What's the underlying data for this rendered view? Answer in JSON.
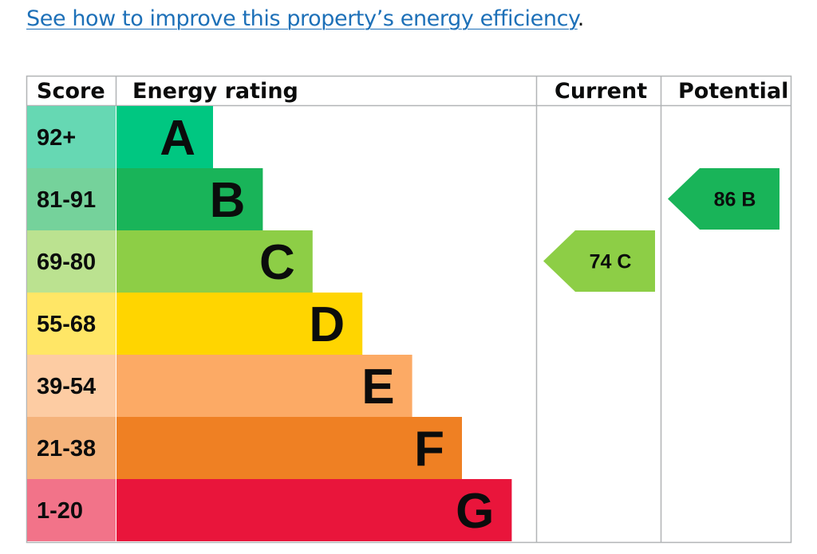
{
  "link": {
    "text": "See how to improve this property’s energy efficiency",
    "trailing": "."
  },
  "headers": {
    "score": "Score",
    "rating": "Energy rating",
    "current": "Current",
    "potential": "Potential"
  },
  "chart_data": {
    "type": "bar",
    "bands": [
      {
        "letter": "A",
        "score": "92+",
        "color": "#00c781",
        "score_bg": "#66d8b3"
      },
      {
        "letter": "B",
        "score": "81-91",
        "color": "#19b459",
        "score_bg": "#75d29b"
      },
      {
        "letter": "C",
        "score": "69-80",
        "color": "#8dce46",
        "score_bg": "#bbe290"
      },
      {
        "letter": "D",
        "score": "55-68",
        "color": "#ffd500",
        "score_bg": "#ffe666"
      },
      {
        "letter": "E",
        "score": "39-54",
        "color": "#fcaa65",
        "score_bg": "#fdcca3"
      },
      {
        "letter": "F",
        "score": "21-38",
        "color": "#ef8023",
        "score_bg": "#f5b37b"
      },
      {
        "letter": "G",
        "score": "1-20",
        "color": "#e9153b",
        "score_bg": "#f27389"
      }
    ],
    "current": {
      "value": 74,
      "band": "C",
      "label": "74  C",
      "color": "#8dce46"
    },
    "potential": {
      "value": 86,
      "band": "B",
      "label": "86  B",
      "color": "#19b459"
    }
  }
}
